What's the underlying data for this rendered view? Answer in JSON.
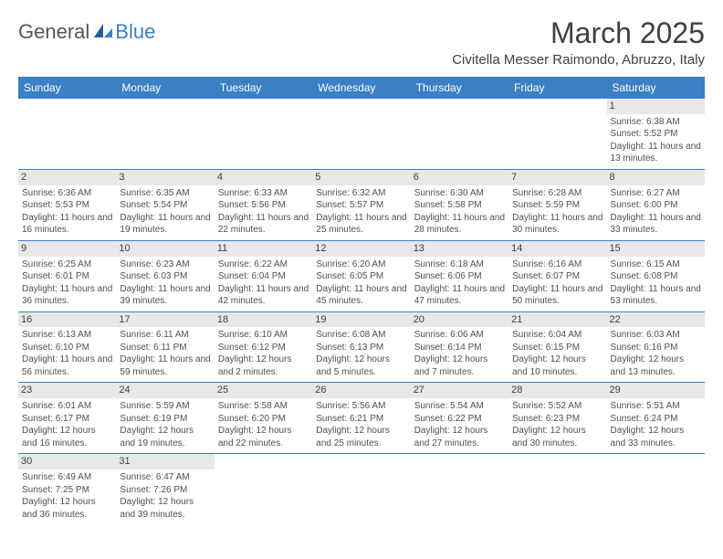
{
  "logo": {
    "text1": "General",
    "text2": "Blue"
  },
  "title": "March 2025",
  "location": "Civitella Messer Raimondo, Abruzzo, Italy",
  "colors": {
    "accent": "#3b7fc4",
    "dayband": "#e8e8e8",
    "text": "#404040"
  },
  "weekdays": [
    "Sunday",
    "Monday",
    "Tuesday",
    "Wednesday",
    "Thursday",
    "Friday",
    "Saturday"
  ],
  "weeks": [
    [
      {
        "n": "",
        "sr": "",
        "ss": "",
        "dl": ""
      },
      {
        "n": "",
        "sr": "",
        "ss": "",
        "dl": ""
      },
      {
        "n": "",
        "sr": "",
        "ss": "",
        "dl": ""
      },
      {
        "n": "",
        "sr": "",
        "ss": "",
        "dl": ""
      },
      {
        "n": "",
        "sr": "",
        "ss": "",
        "dl": ""
      },
      {
        "n": "",
        "sr": "",
        "ss": "",
        "dl": ""
      },
      {
        "n": "1",
        "sr": "Sunrise: 6:38 AM",
        "ss": "Sunset: 5:52 PM",
        "dl": "Daylight: 11 hours and 13 minutes."
      }
    ],
    [
      {
        "n": "2",
        "sr": "Sunrise: 6:36 AM",
        "ss": "Sunset: 5:53 PM",
        "dl": "Daylight: 11 hours and 16 minutes."
      },
      {
        "n": "3",
        "sr": "Sunrise: 6:35 AM",
        "ss": "Sunset: 5:54 PM",
        "dl": "Daylight: 11 hours and 19 minutes."
      },
      {
        "n": "4",
        "sr": "Sunrise: 6:33 AM",
        "ss": "Sunset: 5:56 PM",
        "dl": "Daylight: 11 hours and 22 minutes."
      },
      {
        "n": "5",
        "sr": "Sunrise: 6:32 AM",
        "ss": "Sunset: 5:57 PM",
        "dl": "Daylight: 11 hours and 25 minutes."
      },
      {
        "n": "6",
        "sr": "Sunrise: 6:30 AM",
        "ss": "Sunset: 5:58 PM",
        "dl": "Daylight: 11 hours and 28 minutes."
      },
      {
        "n": "7",
        "sr": "Sunrise: 6:28 AM",
        "ss": "Sunset: 5:59 PM",
        "dl": "Daylight: 11 hours and 30 minutes."
      },
      {
        "n": "8",
        "sr": "Sunrise: 6:27 AM",
        "ss": "Sunset: 6:00 PM",
        "dl": "Daylight: 11 hours and 33 minutes."
      }
    ],
    [
      {
        "n": "9",
        "sr": "Sunrise: 6:25 AM",
        "ss": "Sunset: 6:01 PM",
        "dl": "Daylight: 11 hours and 36 minutes."
      },
      {
        "n": "10",
        "sr": "Sunrise: 6:23 AM",
        "ss": "Sunset: 6:03 PM",
        "dl": "Daylight: 11 hours and 39 minutes."
      },
      {
        "n": "11",
        "sr": "Sunrise: 6:22 AM",
        "ss": "Sunset: 6:04 PM",
        "dl": "Daylight: 11 hours and 42 minutes."
      },
      {
        "n": "12",
        "sr": "Sunrise: 6:20 AM",
        "ss": "Sunset: 6:05 PM",
        "dl": "Daylight: 11 hours and 45 minutes."
      },
      {
        "n": "13",
        "sr": "Sunrise: 6:18 AM",
        "ss": "Sunset: 6:06 PM",
        "dl": "Daylight: 11 hours and 47 minutes."
      },
      {
        "n": "14",
        "sr": "Sunrise: 6:16 AM",
        "ss": "Sunset: 6:07 PM",
        "dl": "Daylight: 11 hours and 50 minutes."
      },
      {
        "n": "15",
        "sr": "Sunrise: 6:15 AM",
        "ss": "Sunset: 6:08 PM",
        "dl": "Daylight: 11 hours and 53 minutes."
      }
    ],
    [
      {
        "n": "16",
        "sr": "Sunrise: 6:13 AM",
        "ss": "Sunset: 6:10 PM",
        "dl": "Daylight: 11 hours and 56 minutes."
      },
      {
        "n": "17",
        "sr": "Sunrise: 6:11 AM",
        "ss": "Sunset: 6:11 PM",
        "dl": "Daylight: 11 hours and 59 minutes."
      },
      {
        "n": "18",
        "sr": "Sunrise: 6:10 AM",
        "ss": "Sunset: 6:12 PM",
        "dl": "Daylight: 12 hours and 2 minutes."
      },
      {
        "n": "19",
        "sr": "Sunrise: 6:08 AM",
        "ss": "Sunset: 6:13 PM",
        "dl": "Daylight: 12 hours and 5 minutes."
      },
      {
        "n": "20",
        "sr": "Sunrise: 6:06 AM",
        "ss": "Sunset: 6:14 PM",
        "dl": "Daylight: 12 hours and 7 minutes."
      },
      {
        "n": "21",
        "sr": "Sunrise: 6:04 AM",
        "ss": "Sunset: 6:15 PM",
        "dl": "Daylight: 12 hours and 10 minutes."
      },
      {
        "n": "22",
        "sr": "Sunrise: 6:03 AM",
        "ss": "Sunset: 6:16 PM",
        "dl": "Daylight: 12 hours and 13 minutes."
      }
    ],
    [
      {
        "n": "23",
        "sr": "Sunrise: 6:01 AM",
        "ss": "Sunset: 6:17 PM",
        "dl": "Daylight: 12 hours and 16 minutes."
      },
      {
        "n": "24",
        "sr": "Sunrise: 5:59 AM",
        "ss": "Sunset: 6:19 PM",
        "dl": "Daylight: 12 hours and 19 minutes."
      },
      {
        "n": "25",
        "sr": "Sunrise: 5:58 AM",
        "ss": "Sunset: 6:20 PM",
        "dl": "Daylight: 12 hours and 22 minutes."
      },
      {
        "n": "26",
        "sr": "Sunrise: 5:56 AM",
        "ss": "Sunset: 6:21 PM",
        "dl": "Daylight: 12 hours and 25 minutes."
      },
      {
        "n": "27",
        "sr": "Sunrise: 5:54 AM",
        "ss": "Sunset: 6:22 PM",
        "dl": "Daylight: 12 hours and 27 minutes."
      },
      {
        "n": "28",
        "sr": "Sunrise: 5:52 AM",
        "ss": "Sunset: 6:23 PM",
        "dl": "Daylight: 12 hours and 30 minutes."
      },
      {
        "n": "29",
        "sr": "Sunrise: 5:51 AM",
        "ss": "Sunset: 6:24 PM",
        "dl": "Daylight: 12 hours and 33 minutes."
      }
    ],
    [
      {
        "n": "30",
        "sr": "Sunrise: 6:49 AM",
        "ss": "Sunset: 7:25 PM",
        "dl": "Daylight: 12 hours and 36 minutes."
      },
      {
        "n": "31",
        "sr": "Sunrise: 6:47 AM",
        "ss": "Sunset: 7:26 PM",
        "dl": "Daylight: 12 hours and 39 minutes."
      },
      {
        "n": "",
        "sr": "",
        "ss": "",
        "dl": ""
      },
      {
        "n": "",
        "sr": "",
        "ss": "",
        "dl": ""
      },
      {
        "n": "",
        "sr": "",
        "ss": "",
        "dl": ""
      },
      {
        "n": "",
        "sr": "",
        "ss": "",
        "dl": ""
      },
      {
        "n": "",
        "sr": "",
        "ss": "",
        "dl": ""
      }
    ]
  ]
}
